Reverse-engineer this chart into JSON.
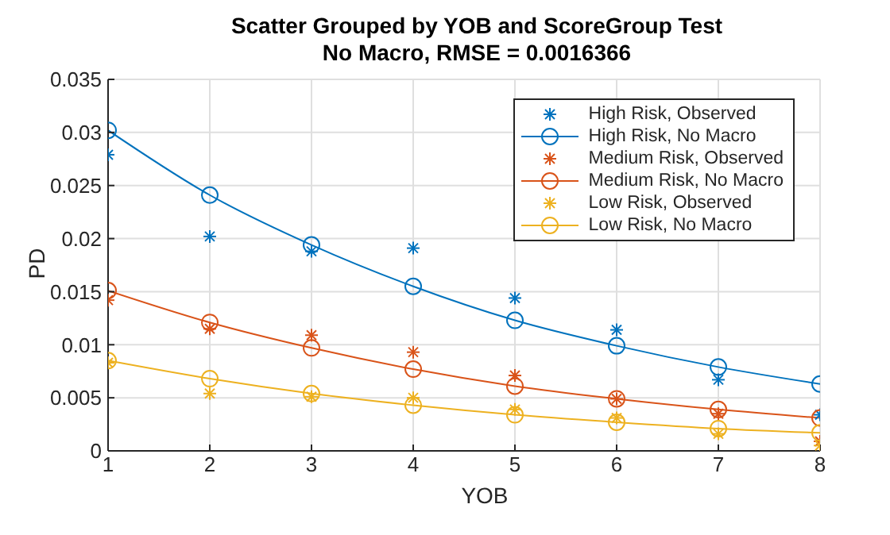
{
  "chart_data": {
    "type": "scatter",
    "title": "Scatter Grouped by YOB and ScoreGroup Test",
    "subtitle": "No Macro, RMSE = 0.0016366",
    "xlabel": "YOB",
    "ylabel": "PD",
    "x": [
      1,
      2,
      3,
      4,
      5,
      6,
      7,
      8
    ],
    "xlim": [
      1,
      8
    ],
    "xticks": [
      1,
      2,
      3,
      4,
      5,
      6,
      7,
      8
    ],
    "ylim": [
      0,
      0.035
    ],
    "yticks": [
      0,
      0.005,
      0.01,
      0.015,
      0.02,
      0.025,
      0.03,
      0.035
    ],
    "grid": true,
    "legend": "top right",
    "series": [
      {
        "name": "High Risk, Observed",
        "marker": "cross",
        "color": "#0072bd",
        "values": [
          0.0279,
          0.0202,
          0.0188,
          0.0191,
          0.0144,
          0.0114,
          0.0067,
          0.0034
        ]
      },
      {
        "name": "High Risk, No Macro",
        "type": "line",
        "marker": "circle",
        "color": "#0072bd",
        "values": [
          0.0302,
          0.0241,
          0.0194,
          0.0155,
          0.0123,
          0.0099,
          0.0079,
          0.0063
        ]
      },
      {
        "name": "Medium Risk, Observed",
        "marker": "cross",
        "color": "#d95319",
        "values": [
          0.0142,
          0.0115,
          0.0109,
          0.0093,
          0.0071,
          0.0049,
          0.0035,
          0.0009
        ]
      },
      {
        "name": "Medium Risk, No Macro",
        "type": "line",
        "marker": "circle",
        "color": "#d95319",
        "values": [
          0.0151,
          0.0121,
          0.0097,
          0.0077,
          0.0061,
          0.0049,
          0.0039,
          0.0031
        ]
      },
      {
        "name": "Low Risk, Observed",
        "marker": "cross",
        "color": "#edb120",
        "values": [
          0.0083,
          0.0054,
          0.0051,
          0.005,
          0.0039,
          0.0031,
          0.0016,
          0.0005
        ]
      },
      {
        "name": "Low Risk, No Macro",
        "type": "line",
        "marker": "circle",
        "color": "#edb120",
        "values": [
          0.0085,
          0.0068,
          0.0054,
          0.0043,
          0.0034,
          0.0027,
          0.0021,
          0.0017
        ]
      }
    ]
  }
}
